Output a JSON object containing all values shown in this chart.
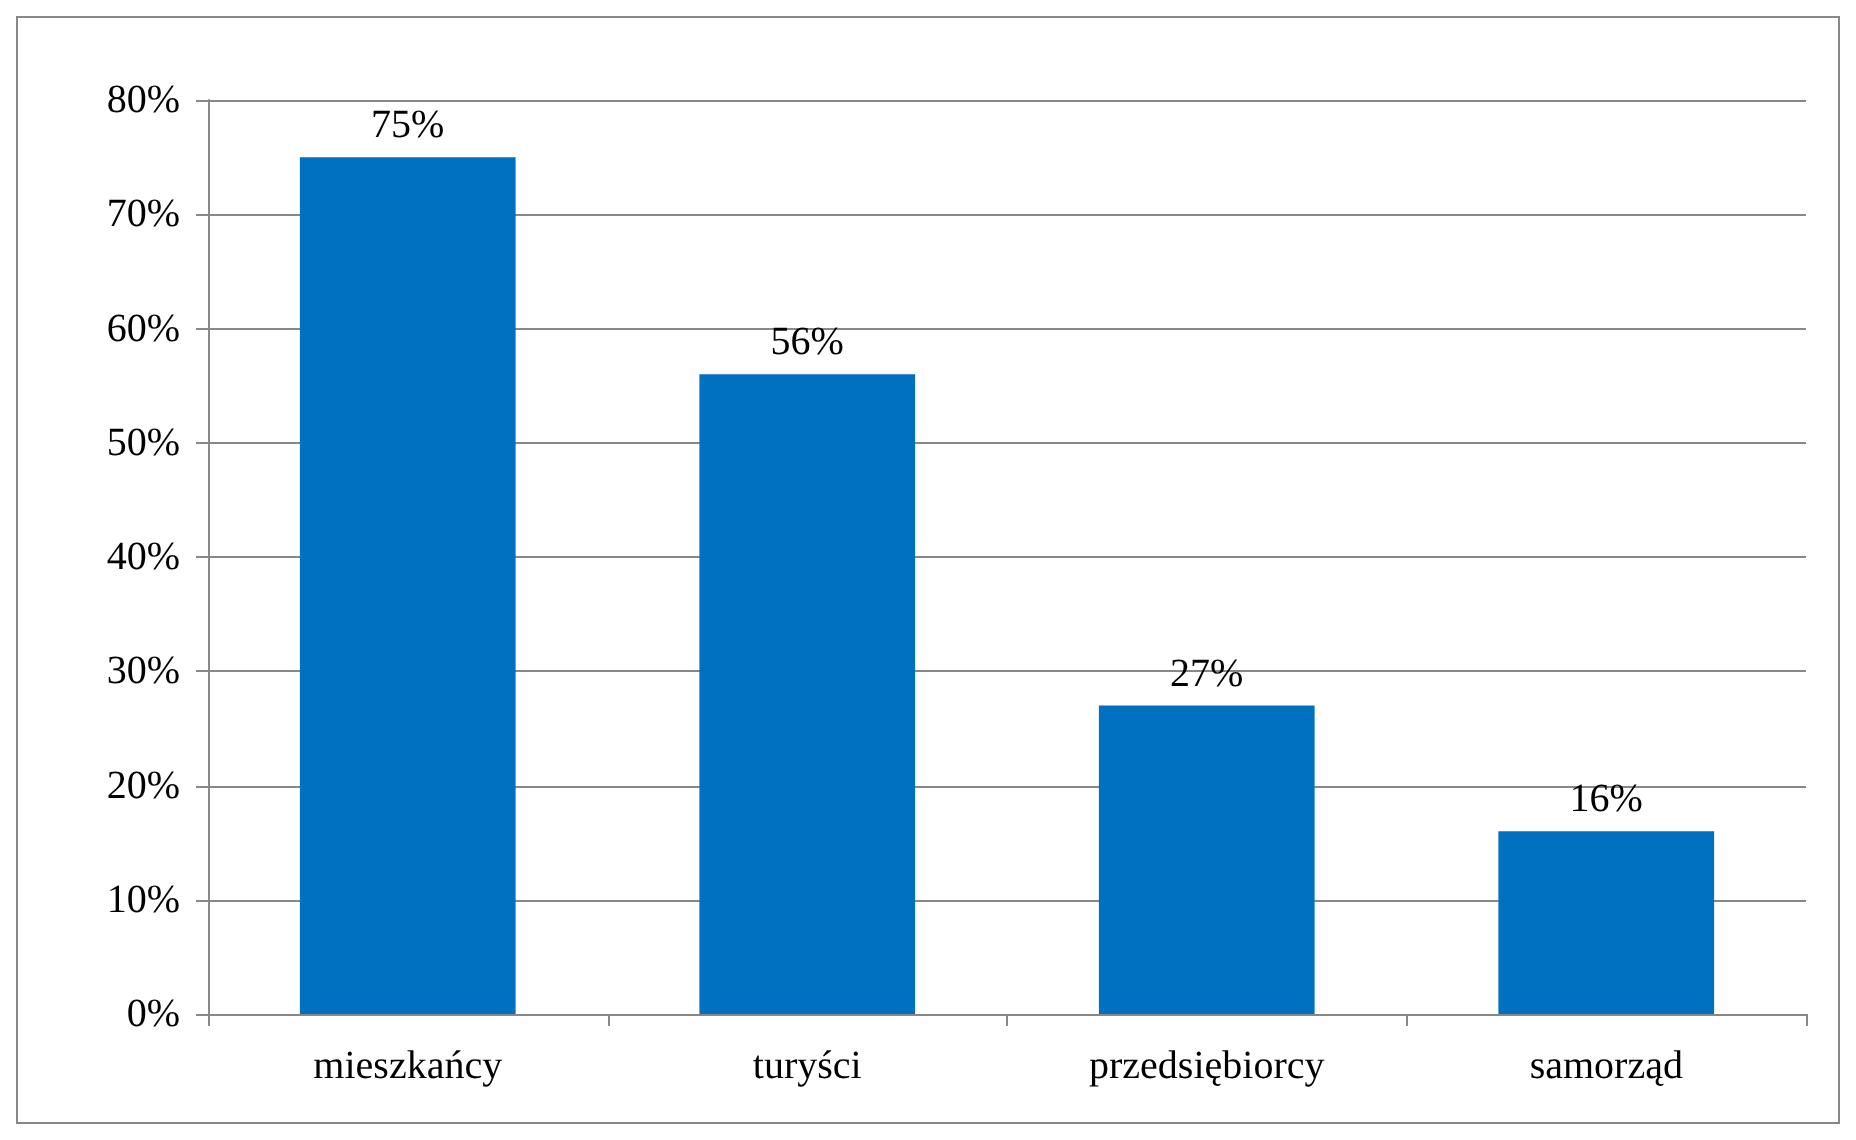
{
  "chart_data": {
    "type": "bar",
    "categories": [
      "mieszkańcy",
      "turyści",
      "przedsiębiorcy",
      "samorząd"
    ],
    "values": [
      75,
      56,
      27,
      16
    ],
    "color": "#0070c0",
    "value_labels": [
      "75%",
      "56%",
      "27%",
      "16%"
    ],
    "ylim": [
      0,
      80
    ],
    "yticks": [
      {
        "value": 0,
        "label": "0%"
      },
      {
        "value": 10,
        "label": "10%"
      },
      {
        "value": 20,
        "label": "20%"
      },
      {
        "value": 30,
        "label": "30%"
      },
      {
        "value": 40,
        "label": "40%"
      },
      {
        "value": 50,
        "label": "50%"
      },
      {
        "value": 60,
        "label": "60%"
      },
      {
        "value": 70,
        "label": "70%"
      },
      {
        "value": 80,
        "label": "80%"
      }
    ],
    "grid": "y"
  }
}
